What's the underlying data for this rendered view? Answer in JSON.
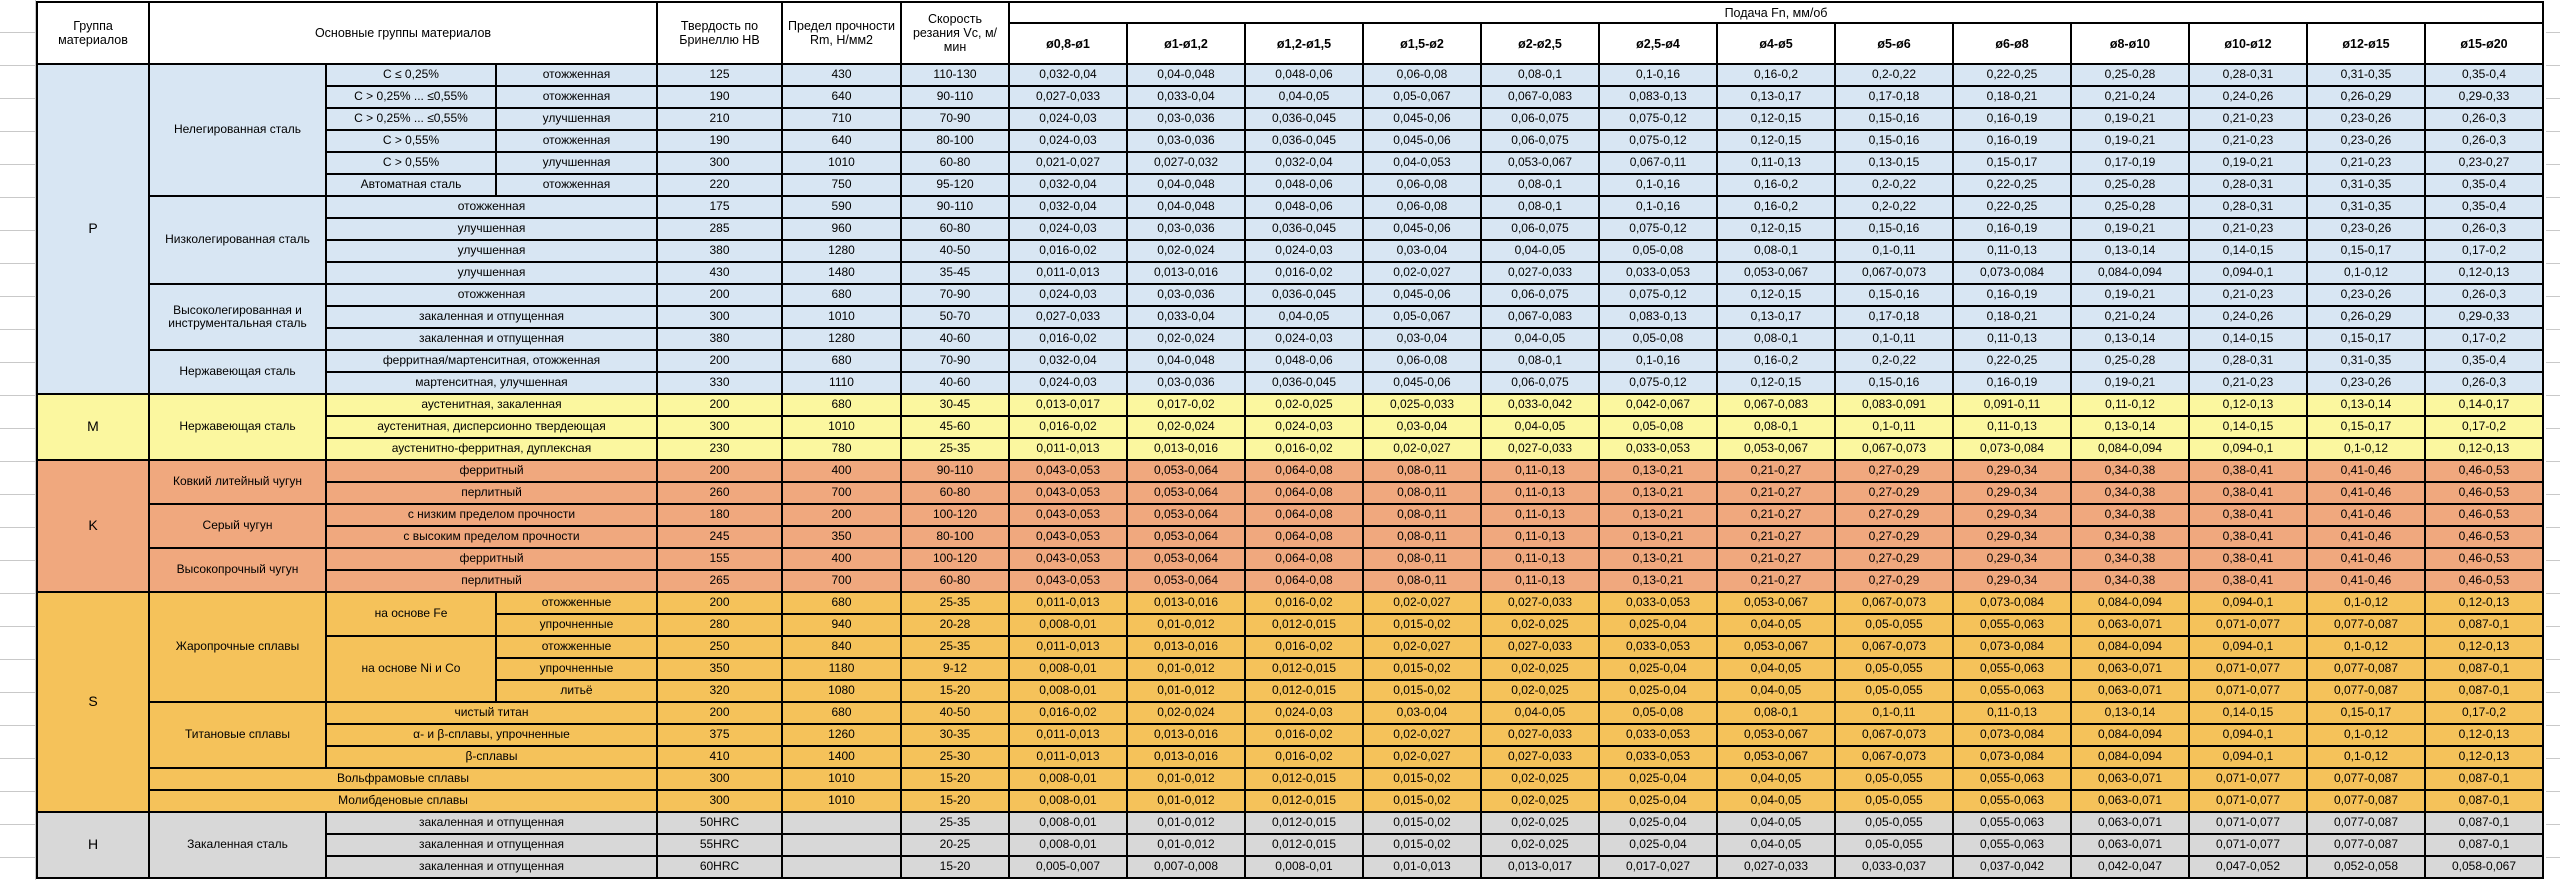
{
  "colors": {
    "group_P": "#d8e6f3",
    "group_M": "#fbf79f",
    "group_K": "#f0a87e",
    "group_S": "#f5c25a",
    "group_H": "#d8d8d8",
    "grid_line": "#c9c9c9",
    "cell_border": "#000000"
  },
  "table": {
    "header": {
      "group": "Группа материалов",
      "materials": "Основные группы материалов",
      "hardness": "Твердость по Бринеллю HB",
      "strength": "Предел прочности Rm, Н/мм2",
      "speed": "Скорость резания Vc, м/мин",
      "feed": "Подача Fn, мм/об",
      "diameters": [
        "ø0,8-ø1",
        "ø1-ø1,2",
        "ø1,2-ø1,5",
        "ø1,5-ø2",
        "ø2-ø2,5",
        "ø2,5-ø4",
        "ø4-ø5",
        "ø5-ø6",
        "ø6-ø8",
        "ø8-ø10",
        "ø10-ø12",
        "ø12-ø15",
        "ø15-ø20"
      ]
    },
    "feed_profiles": {
      "A": [
        "0,032-0,04",
        "0,04-0,048",
        "0,048-0,06",
        "0,06-0,08",
        "0,08-0,1",
        "0,1-0,16",
        "0,16-0,2",
        "0,2-0,22",
        "0,22-0,25",
        "0,25-0,28",
        "0,28-0,31",
        "0,31-0,35",
        "0,35-0,4"
      ],
      "B": [
        "0,027-0,033",
        "0,033-0,04",
        "0,04-0,05",
        "0,05-0,067",
        "0,067-0,083",
        "0,083-0,13",
        "0,13-0,17",
        "0,17-0,18",
        "0,18-0,21",
        "0,21-0,24",
        "0,24-0,26",
        "0,26-0,29",
        "0,29-0,33"
      ],
      "C": [
        "0,024-0,03",
        "0,03-0,036",
        "0,036-0,045",
        "0,045-0,06",
        "0,06-0,075",
        "0,075-0,12",
        "0,12-0,15",
        "0,15-0,16",
        "0,16-0,19",
        "0,19-0,21",
        "0,21-0,23",
        "0,23-0,26",
        "0,26-0,3"
      ],
      "D": [
        "0,021-0,027",
        "0,027-0,032",
        "0,032-0,04",
        "0,04-0,053",
        "0,053-0,067",
        "0,067-0,11",
        "0,11-0,13",
        "0,13-0,15",
        "0,15-0,17",
        "0,17-0,19",
        "0,19-0,21",
        "0,21-0,23",
        "0,23-0,27"
      ],
      "E": [
        "0,016-0,02",
        "0,02-0,024",
        "0,024-0,03",
        "0,03-0,04",
        "0,04-0,05",
        "0,05-0,08",
        "0,08-0,1",
        "0,1-0,11",
        "0,11-0,13",
        "0,13-0,14",
        "0,14-0,15",
        "0,15-0,17",
        "0,17-0,2"
      ],
      "F": [
        "0,011-0,013",
        "0,013-0,016",
        "0,016-0,02",
        "0,02-0,027",
        "0,027-0,033",
        "0,033-0,053",
        "0,053-0,067",
        "0,067-0,073",
        "0,073-0,084",
        "0,084-0,094",
        "0,094-0,1",
        "0,1-0,12",
        "0,12-0,13"
      ],
      "G": [
        "0,013-0,017",
        "0,017-0,02",
        "0,02-0,025",
        "0,025-0,033",
        "0,033-0,042",
        "0,042-0,067",
        "0,067-0,083",
        "0,083-0,091",
        "0,091-0,11",
        "0,11-0,12",
        "0,12-0,13",
        "0,13-0,14",
        "0,14-0,17"
      ],
      "H": [
        "0,043-0,053",
        "0,053-0,064",
        "0,064-0,08",
        "0,08-0,11",
        "0,11-0,13",
        "0,13-0,21",
        "0,21-0,27",
        "0,27-0,29",
        "0,29-0,34",
        "0,34-0,38",
        "0,38-0,41",
        "0,41-0,46",
        "0,46-0,53"
      ],
      "I": [
        "0,008-0,01",
        "0,01-0,012",
        "0,012-0,015",
        "0,015-0,02",
        "0,02-0,025",
        "0,025-0,04",
        "0,04-0,05",
        "0,05-0,055",
        "0,055-0,063",
        "0,063-0,071",
        "0,071-0,077",
        "0,077-0,087",
        "0,087-0,1"
      ],
      "J": [
        "0,005-0,007",
        "0,007-0,008",
        "0,008-0,01",
        "0,01-0,013",
        "0,013-0,017",
        "0,017-0,027",
        "0,027-0,033",
        "0,033-0,037",
        "0,037-0,042",
        "0,042-0,047",
        "0,047-0,052",
        "0,052-0,058",
        "0,058-0,067"
      ]
    },
    "groups": [
      {
        "code": "P",
        "color": "#d8e6f3",
        "families": [
          {
            "name": "Нелегированная сталь",
            "rows": [
              {
                "sub": "C ≤ 0,25%",
                "state": "отожженная",
                "hb": "125",
                "rm": "430",
                "vc": "110-130",
                "feeds": "A"
              },
              {
                "sub": "C > 0,25% ... ≤0,55%",
                "state": "отожженная",
                "hb": "190",
                "rm": "640",
                "vc": "90-110",
                "feeds": "B"
              },
              {
                "sub": "C > 0,25% ... ≤0,55%",
                "state": "улучшенная",
                "hb": "210",
                "rm": "710",
                "vc": "70-90",
                "feeds": "C"
              },
              {
                "sub": "C > 0,55%",
                "state": "отожженная",
                "hb": "190",
                "rm": "640",
                "vc": "80-100",
                "feeds": "C"
              },
              {
                "sub": "C > 0,55%",
                "state": "улучшенная",
                "hb": "300",
                "rm": "1010",
                "vc": "60-80",
                "feeds": "D"
              },
              {
                "sub": "Автоматная сталь",
                "state": "отожженная",
                "hb": "220",
                "rm": "750",
                "vc": "95-120",
                "feeds": "A"
              }
            ]
          },
          {
            "name": "Низколегированная сталь",
            "rows": [
              {
                "desc": "отожженная",
                "hb": "175",
                "rm": "590",
                "vc": "90-110",
                "feeds": "A"
              },
              {
                "desc": "улучшенная",
                "hb": "285",
                "rm": "960",
                "vc": "60-80",
                "feeds": "C"
              },
              {
                "desc": "улучшенная",
                "hb": "380",
                "rm": "1280",
                "vc": "40-50",
                "feeds": "E"
              },
              {
                "desc": "улучшенная",
                "hb": "430",
                "rm": "1480",
                "vc": "35-45",
                "feeds": "F"
              }
            ]
          },
          {
            "name": "Высоколегированная и инструментальная сталь",
            "rows": [
              {
                "desc": "отожженная",
                "hb": "200",
                "rm": "680",
                "vc": "70-90",
                "feeds": "C"
              },
              {
                "desc": "закаленная и отпущенная",
                "hb": "300",
                "rm": "1010",
                "vc": "50-70",
                "feeds": "B"
              },
              {
                "desc": "закаленная и отпущенная",
                "hb": "380",
                "rm": "1280",
                "vc": "40-60",
                "feeds": "E"
              }
            ]
          },
          {
            "name": "Нержавеющая сталь",
            "rows": [
              {
                "desc": "ферритная/мартенситная, отожженная",
                "hb": "200",
                "rm": "680",
                "vc": "70-90",
                "feeds": "A"
              },
              {
                "desc": "мартенситная, улучшенная",
                "hb": "330",
                "rm": "1110",
                "vc": "40-60",
                "feeds": "C"
              }
            ]
          }
        ]
      },
      {
        "code": "M",
        "color": "#fbf79f",
        "families": [
          {
            "name": "Нержавеющая сталь",
            "rows": [
              {
                "desc": "аустенитная, закаленная",
                "hb": "200",
                "rm": "680",
                "vc": "30-45",
                "feeds": "G"
              },
              {
                "desc": "аустенитная, дисперсионно твердеющая",
                "hb": "300",
                "rm": "1010",
                "vc": "45-60",
                "feeds": "E"
              },
              {
                "desc": "аустенитно-ферритная, дуплексная",
                "hb": "230",
                "rm": "780",
                "vc": "25-35",
                "feeds": "F"
              }
            ]
          }
        ]
      },
      {
        "code": "K",
        "color": "#f0a87e",
        "families": [
          {
            "name": "Ковкий литейный чугун",
            "rows": [
              {
                "desc": "ферритный",
                "hb": "200",
                "rm": "400",
                "vc": "90-110",
                "feeds": "H"
              },
              {
                "desc": "перлитный",
                "hb": "260",
                "rm": "700",
                "vc": "60-80",
                "feeds": "H"
              }
            ]
          },
          {
            "name": "Серый чугун",
            "rows": [
              {
                "desc": "с низким пределом прочности",
                "hb": "180",
                "rm": "200",
                "vc": "100-120",
                "feeds": "H"
              },
              {
                "desc": "с высоким пределом прочности",
                "hb": "245",
                "rm": "350",
                "vc": "80-100",
                "feeds": "H"
              }
            ]
          },
          {
            "name": "Высокопрочный чугун",
            "rows": [
              {
                "desc": "ферритный",
                "hb": "155",
                "rm": "400",
                "vc": "100-120",
                "feeds": "H"
              },
              {
                "desc": "перлитный",
                "hb": "265",
                "rm": "700",
                "vc": "60-80",
                "feeds": "H"
              }
            ]
          }
        ]
      },
      {
        "code": "S",
        "color": "#f5c25a",
        "families": [
          {
            "name": "Жаропрочные сплавы",
            "subfamilies": [
              {
                "name": "на основе Fe",
                "rows": [
                  {
                    "state": "отожженные",
                    "hb": "200",
                    "rm": "680",
                    "vc": "25-35",
                    "feeds": "F"
                  },
                  {
                    "state": "упрочненные",
                    "hb": "280",
                    "rm": "940",
                    "vc": "20-28",
                    "feeds": "I"
                  }
                ]
              },
              {
                "name": "на основе Ni и Co",
                "rows": [
                  {
                    "state": "отожженные",
                    "hb": "250",
                    "rm": "840",
                    "vc": "25-35",
                    "feeds": "F"
                  },
                  {
                    "state": "упрочненные",
                    "hb": "350",
                    "rm": "1180",
                    "vc": "9-12",
                    "feeds": "I"
                  },
                  {
                    "state": "литьё",
                    "hb": "320",
                    "rm": "1080",
                    "vc": "15-20",
                    "feeds": "I"
                  }
                ]
              }
            ]
          },
          {
            "name": "Титановые сплавы",
            "rows": [
              {
                "desc": "чистый титан",
                "hb": "200",
                "rm": "680",
                "vc": "40-50",
                "feeds": "E"
              },
              {
                "desc": "α- и β-сплавы, упрочненные",
                "hb": "375",
                "rm": "1260",
                "vc": "30-35",
                "feeds": "F"
              },
              {
                "desc": "β-сплавы",
                "hb": "410",
                "rm": "1400",
                "vc": "25-30",
                "feeds": "F"
              }
            ]
          },
          {
            "name": "Вольфрамовые сплавы",
            "wide": true,
            "rows": [
              {
                "hb": "300",
                "rm": "1010",
                "vc": "15-20",
                "feeds": "I"
              }
            ]
          },
          {
            "name": "Молибденовые сплавы",
            "wide": true,
            "rows": [
              {
                "hb": "300",
                "rm": "1010",
                "vc": "15-20",
                "feeds": "I"
              }
            ]
          }
        ]
      },
      {
        "code": "H",
        "color": "#d8d8d8",
        "families": [
          {
            "name": "Закаленная сталь",
            "rows": [
              {
                "desc": "закаленная и отпущенная",
                "hb": "50HRC",
                "rm": "",
                "vc": "25-35",
                "feeds": "I"
              },
              {
                "desc": "закаленная и отпущенная",
                "hb": "55HRC",
                "rm": "",
                "vc": "20-25",
                "feeds": "I"
              },
              {
                "desc": "закаленная и отпущенная",
                "hb": "60HRC",
                "rm": "",
                "vc": "15-20",
                "feeds": "J"
              }
            ]
          }
        ]
      }
    ]
  }
}
